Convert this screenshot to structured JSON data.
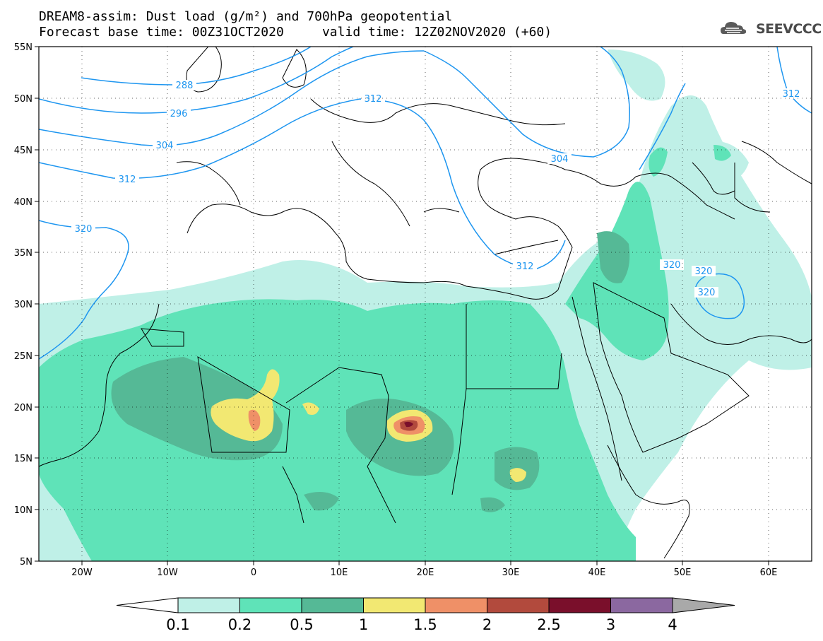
{
  "header": {
    "title_line1": "DREAM8-assim: Dust load (g/m²) and 700hPa geopotential",
    "title_line2_base": "Forecast base time: 00Z31OCT2020",
    "title_line2_valid": "valid time: 12Z02NOV2020 (+60)",
    "logo_text": "SEEVCCC",
    "logo_icon": "cloud-icon"
  },
  "axes": {
    "latitude_labels": [
      "55N",
      "50N",
      "45N",
      "40N",
      "35N",
      "30N",
      "25N",
      "20N",
      "15N",
      "10N",
      "5N"
    ],
    "longitude_labels": [
      "20W",
      "10W",
      "0",
      "10E",
      "20E",
      "30E",
      "40E",
      "50E",
      "60E"
    ]
  },
  "contours": {
    "geopotential_labels": [
      "288",
      "296",
      "304",
      "312",
      "320",
      "312",
      "304",
      "312",
      "312",
      "320",
      "320",
      "320"
    ]
  },
  "colorbar": {
    "labels": [
      "0.1",
      "0.2",
      "0.5",
      "1",
      "1.5",
      "2",
      "2.5",
      "3",
      "4"
    ],
    "colors": [
      "#ffffff",
      "#bff0e7",
      "#5fe3b8",
      "#55b996",
      "#f2e872",
      "#ef9067",
      "#b24a3d",
      "#7a0f2b",
      "#8b68a0",
      "#a9a9a9"
    ]
  },
  "palette": {
    "contour_line": "#1e96f0",
    "border_line": "#000000"
  }
}
